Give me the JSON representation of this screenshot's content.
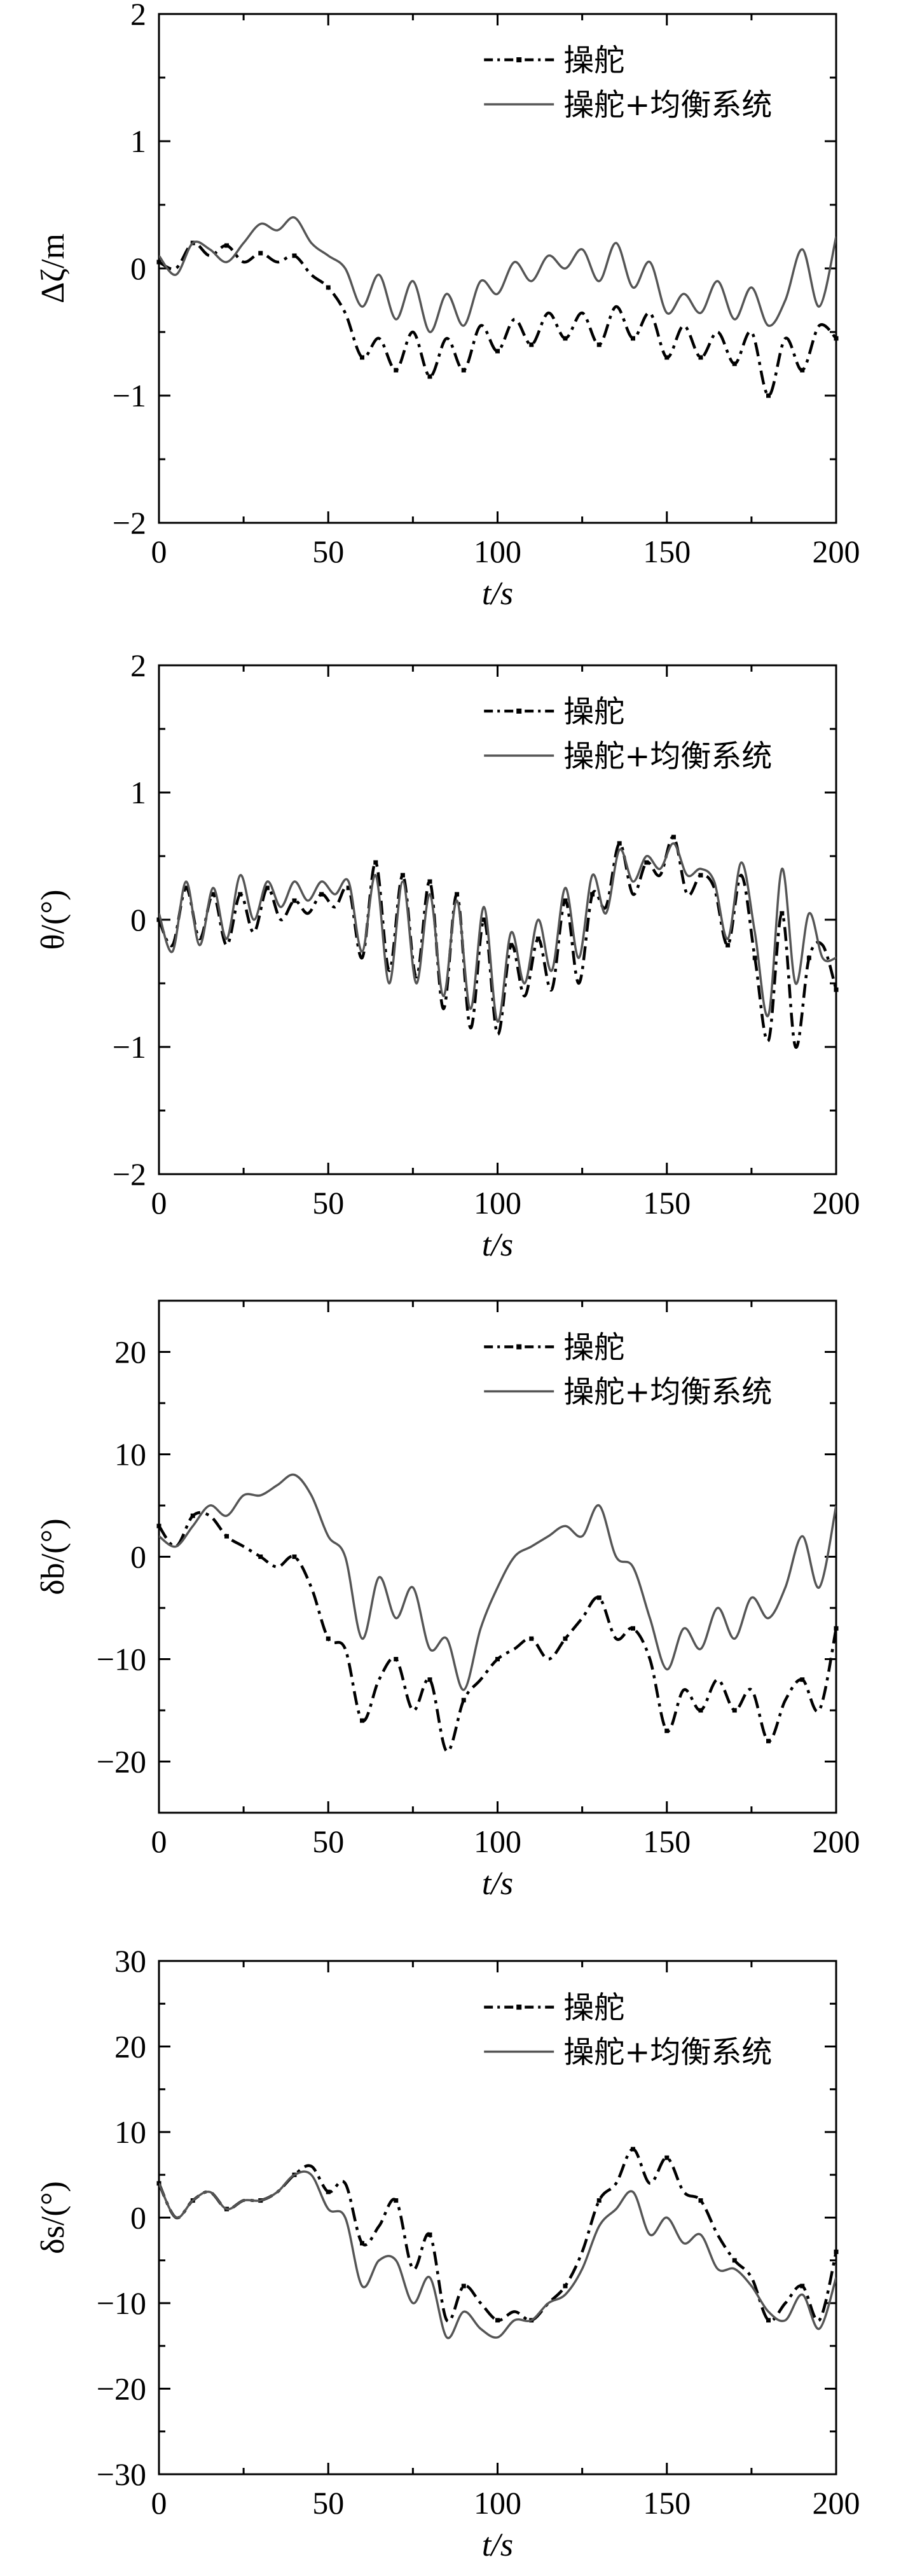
{
  "chart_data": [
    {
      "type": "line",
      "ylabel": "Δζ/m",
      "xlabel": "t/s",
      "xlim": [
        0,
        200
      ],
      "ylim": [
        -2,
        2
      ],
      "xticks": [
        "0",
        "50",
        "100",
        "150",
        "200"
      ],
      "yticks": [
        "−2",
        "−1",
        "0",
        "1",
        "2"
      ],
      "legend_position": "top-right",
      "series": [
        {
          "name": "操舵",
          "style": "dashed-marker",
          "color": "#000000",
          "x": [
            0,
            5,
            10,
            15,
            20,
            25,
            30,
            35,
            40,
            45,
            50,
            55,
            60,
            65,
            70,
            75,
            80,
            85,
            90,
            95,
            100,
            105,
            110,
            115,
            120,
            125,
            130,
            135,
            140,
            145,
            150,
            155,
            160,
            165,
            170,
            175,
            180,
            185,
            190,
            195,
            200
          ],
          "y": [
            0.05,
            0.0,
            0.2,
            0.1,
            0.18,
            0.05,
            0.12,
            0.05,
            0.1,
            -0.05,
            -0.15,
            -0.35,
            -0.7,
            -0.55,
            -0.8,
            -0.5,
            -0.85,
            -0.55,
            -0.8,
            -0.45,
            -0.65,
            -0.4,
            -0.6,
            -0.35,
            -0.55,
            -0.35,
            -0.6,
            -0.3,
            -0.55,
            -0.35,
            -0.7,
            -0.45,
            -0.7,
            -0.5,
            -0.75,
            -0.5,
            -1.0,
            -0.55,
            -0.8,
            -0.45,
            -0.55
          ]
        },
        {
          "name": "操舵+均衡系统",
          "style": "solid",
          "color": "#555555",
          "x": [
            0,
            5,
            10,
            15,
            20,
            25,
            30,
            35,
            40,
            45,
            50,
            55,
            60,
            65,
            70,
            75,
            80,
            85,
            90,
            95,
            100,
            105,
            110,
            115,
            120,
            125,
            130,
            135,
            140,
            145,
            150,
            155,
            160,
            165,
            170,
            175,
            180,
            185,
            190,
            195,
            200
          ],
          "y": [
            0.1,
            -0.05,
            0.2,
            0.15,
            0.05,
            0.2,
            0.35,
            0.3,
            0.4,
            0.2,
            0.1,
            0.0,
            -0.3,
            -0.05,
            -0.4,
            -0.1,
            -0.5,
            -0.2,
            -0.45,
            -0.1,
            -0.2,
            0.05,
            -0.1,
            0.1,
            0.0,
            0.15,
            -0.1,
            0.2,
            -0.15,
            0.05,
            -0.35,
            -0.2,
            -0.35,
            -0.1,
            -0.4,
            -0.15,
            -0.45,
            -0.25,
            0.15,
            -0.3,
            0.25
          ]
        }
      ]
    },
    {
      "type": "line",
      "ylabel": "θ/(°)",
      "xlabel": "t/s",
      "xlim": [
        0,
        200
      ],
      "ylim": [
        -2,
        2
      ],
      "xticks": [
        "0",
        "50",
        "100",
        "150",
        "200"
      ],
      "yticks": [
        "−2",
        "−1",
        "0",
        "1",
        "2"
      ],
      "legend_position": "top-right",
      "series": [
        {
          "name": "操舵",
          "style": "dashed-marker",
          "color": "#000000",
          "x": [
            0,
            4,
            8,
            12,
            16,
            20,
            24,
            28,
            32,
            36,
            40,
            44,
            48,
            52,
            56,
            60,
            64,
            68,
            72,
            76,
            80,
            84,
            88,
            92,
            96,
            100,
            104,
            108,
            112,
            116,
            120,
            124,
            128,
            132,
            136,
            140,
            144,
            148,
            152,
            156,
            160,
            164,
            168,
            172,
            176,
            180,
            184,
            188,
            192,
            196,
            200
          ],
          "y": [
            0.0,
            -0.2,
            0.25,
            -0.15,
            0.2,
            -0.2,
            0.2,
            -0.1,
            0.25,
            0.0,
            0.15,
            0.05,
            0.2,
            0.1,
            0.25,
            -0.3,
            0.45,
            -0.4,
            0.35,
            -0.45,
            0.3,
            -0.7,
            0.2,
            -0.85,
            0.0,
            -0.9,
            -0.2,
            -0.6,
            -0.15,
            -0.55,
            0.15,
            -0.5,
            0.2,
            0.1,
            0.6,
            0.2,
            0.45,
            0.35,
            0.65,
            0.2,
            0.35,
            0.25,
            -0.2,
            0.35,
            -0.3,
            -0.95,
            0.05,
            -1.0,
            -0.3,
            -0.2,
            -0.55
          ]
        },
        {
          "name": "操舵+均衡系统",
          "style": "solid",
          "color": "#555555",
          "x": [
            0,
            4,
            8,
            12,
            16,
            20,
            24,
            28,
            32,
            36,
            40,
            44,
            48,
            52,
            56,
            60,
            64,
            68,
            72,
            76,
            80,
            84,
            88,
            92,
            96,
            100,
            104,
            108,
            112,
            116,
            120,
            124,
            128,
            132,
            136,
            140,
            144,
            148,
            152,
            156,
            160,
            164,
            168,
            172,
            176,
            180,
            184,
            188,
            192,
            196,
            200
          ],
          "y": [
            0.05,
            -0.25,
            0.3,
            -0.2,
            0.25,
            -0.15,
            0.35,
            0.0,
            0.3,
            0.1,
            0.3,
            0.15,
            0.3,
            0.2,
            0.3,
            -0.25,
            0.35,
            -0.5,
            0.3,
            -0.5,
            0.2,
            -0.6,
            0.15,
            -0.7,
            0.1,
            -0.8,
            -0.1,
            -0.5,
            0.0,
            -0.4,
            0.25,
            -0.3,
            0.35,
            0.05,
            0.55,
            0.3,
            0.5,
            0.4,
            0.6,
            0.35,
            0.4,
            0.3,
            -0.15,
            0.45,
            -0.1,
            -0.75,
            0.4,
            -0.5,
            0.05,
            -0.3,
            -0.3
          ]
        }
      ]
    },
    {
      "type": "line",
      "ylabel": "δb/(°)",
      "xlabel": "t/s",
      "xlim": [
        0,
        200
      ],
      "ylim": [
        -25,
        25
      ],
      "xticks": [
        "0",
        "50",
        "100",
        "150",
        "200"
      ],
      "yticks": [
        "−20",
        "−10",
        "0",
        "10",
        "20"
      ],
      "legend_position": "top-right",
      "series": [
        {
          "name": "操舵",
          "style": "dashed-marker",
          "color": "#000000",
          "x": [
            0,
            5,
            10,
            15,
            20,
            25,
            30,
            35,
            40,
            45,
            50,
            55,
            60,
            65,
            70,
            75,
            80,
            85,
            90,
            95,
            100,
            105,
            110,
            115,
            120,
            125,
            130,
            135,
            140,
            145,
            150,
            155,
            160,
            165,
            170,
            175,
            180,
            185,
            190,
            195,
            200
          ],
          "y": [
            3,
            1,
            4,
            4,
            2,
            1,
            0,
            -1,
            0,
            -3,
            -8,
            -9,
            -16,
            -12,
            -10,
            -15,
            -12,
            -19,
            -14,
            -12,
            -10,
            -9,
            -8,
            -10,
            -8,
            -6,
            -4,
            -8,
            -7,
            -10,
            -17,
            -13,
            -15,
            -12,
            -15,
            -13,
            -18,
            -14,
            -12,
            -15,
            -7
          ]
        },
        {
          "name": "操舵+均衡系统",
          "style": "solid",
          "color": "#555555",
          "x": [
            0,
            5,
            10,
            15,
            20,
            25,
            30,
            35,
            40,
            45,
            50,
            55,
            60,
            65,
            70,
            75,
            80,
            85,
            90,
            95,
            100,
            105,
            110,
            115,
            120,
            125,
            130,
            135,
            140,
            145,
            150,
            155,
            160,
            165,
            170,
            175,
            180,
            185,
            190,
            195,
            200
          ],
          "y": [
            2,
            1,
            3,
            5,
            4,
            6,
            6,
            7,
            8,
            6,
            2,
            0,
            -8,
            -2,
            -6,
            -3,
            -9,
            -8,
            -13,
            -7,
            -3,
            0,
            1,
            2,
            3,
            2,
            5,
            0,
            -1,
            -6,
            -11,
            -7,
            -9,
            -5,
            -8,
            -4,
            -6,
            -3,
            2,
            -3,
            5
          ]
        }
      ]
    },
    {
      "type": "line",
      "ylabel": "δs/(°)",
      "xlabel": "t/s",
      "xlim": [
        0,
        200
      ],
      "ylim": [
        -30,
        30
      ],
      "xticks": [
        "0",
        "50",
        "100",
        "150",
        "200"
      ],
      "yticks": [
        "−30",
        "−20",
        "−10",
        "0",
        "10",
        "20",
        "30"
      ],
      "legend_position": "top-right",
      "series": [
        {
          "name": "操舵",
          "style": "dashed-marker",
          "color": "#000000",
          "x": [
            0,
            5,
            10,
            15,
            20,
            25,
            30,
            35,
            40,
            45,
            50,
            55,
            60,
            65,
            70,
            75,
            80,
            85,
            90,
            95,
            100,
            105,
            110,
            115,
            120,
            125,
            130,
            135,
            140,
            145,
            150,
            155,
            160,
            165,
            170,
            175,
            180,
            185,
            190,
            195,
            200
          ],
          "y": [
            4,
            0,
            2,
            3,
            1,
            2,
            2,
            3,
            5,
            6,
            3,
            4,
            -3,
            -1,
            2,
            -6,
            -2,
            -12,
            -8,
            -10,
            -12,
            -11,
            -12,
            -10,
            -8,
            -4,
            2,
            4,
            8,
            4,
            7,
            3,
            2,
            -2,
            -5,
            -7,
            -12,
            -10,
            -8,
            -12,
            -4
          ]
        },
        {
          "name": "操舵+均衡系统",
          "style": "solid",
          "color": "#555555",
          "x": [
            0,
            5,
            10,
            15,
            20,
            25,
            30,
            35,
            40,
            45,
            50,
            55,
            60,
            65,
            70,
            75,
            80,
            85,
            90,
            95,
            100,
            105,
            110,
            115,
            120,
            125,
            130,
            135,
            140,
            145,
            150,
            155,
            160,
            165,
            170,
            175,
            180,
            185,
            190,
            195,
            200
          ],
          "y": [
            4,
            0,
            2,
            3,
            1,
            2,
            2,
            3,
            5,
            5,
            1,
            0,
            -8,
            -5,
            -5,
            -10,
            -7,
            -14,
            -11,
            -13,
            -14,
            -12,
            -12,
            -10,
            -9,
            -6,
            -1,
            1,
            3,
            -2,
            0,
            -3,
            -2,
            -6,
            -6,
            -8,
            -11,
            -12,
            -9,
            -13,
            -7
          ]
        }
      ]
    }
  ]
}
